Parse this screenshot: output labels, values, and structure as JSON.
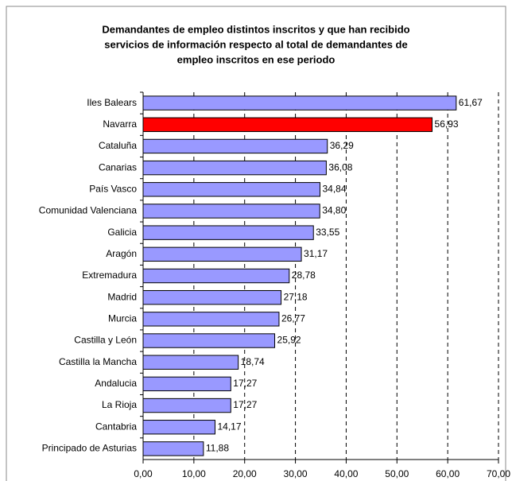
{
  "chart_data": {
    "type": "bar",
    "orientation": "horizontal",
    "title": [
      "Demandantes de empleo distintos inscritos y que han recibido",
      "servicios de información respecto al total de demandantes de",
      "empleo inscritos en ese periodo"
    ],
    "categories": [
      "Iles Balears",
      "Navarra",
      "Cataluña",
      "Canarias",
      "País Vasco",
      "Comunidad Valenciana",
      "Galicia",
      "Aragón",
      "Extremadura",
      "Madrid",
      "Murcia",
      "Castilla y León",
      "Castilla la Mancha",
      "Andalucia",
      "La Rioja",
      "Cantabria",
      "Principado de Asturias"
    ],
    "values": [
      61.67,
      56.93,
      36.29,
      36.08,
      34.84,
      34.8,
      33.55,
      31.17,
      28.78,
      27.18,
      26.77,
      25.92,
      18.74,
      17.27,
      17.27,
      14.17,
      11.88
    ],
    "value_labels": [
      "61,67",
      "56,93",
      "36,29",
      "36,08",
      "34,84",
      "34,80",
      "33,55",
      "31,17",
      "28,78",
      "27,18",
      "26,77",
      "25,92",
      "18,74",
      "17,27",
      "17,27",
      "14,17",
      "11,88"
    ],
    "colors": [
      "#9999ff",
      "#ff0000",
      "#9999ff",
      "#9999ff",
      "#9999ff",
      "#9999ff",
      "#9999ff",
      "#9999ff",
      "#9999ff",
      "#9999ff",
      "#9999ff",
      "#9999ff",
      "#9999ff",
      "#9999ff",
      "#9999ff",
      "#9999ff",
      "#9999ff"
    ],
    "xlim": [
      0,
      70
    ],
    "xticks": [
      {
        "value": 0,
        "label": "0,00"
      },
      {
        "value": 10,
        "label": "10,00"
      },
      {
        "value": 20,
        "label": "20,00"
      },
      {
        "value": 30,
        "label": "30,00"
      },
      {
        "value": 40,
        "label": "40,00"
      },
      {
        "value": 50,
        "label": "50,00"
      },
      {
        "value": 60,
        "label": "60,00"
      },
      {
        "value": 70,
        "label": "70,00"
      }
    ],
    "grid": true
  }
}
